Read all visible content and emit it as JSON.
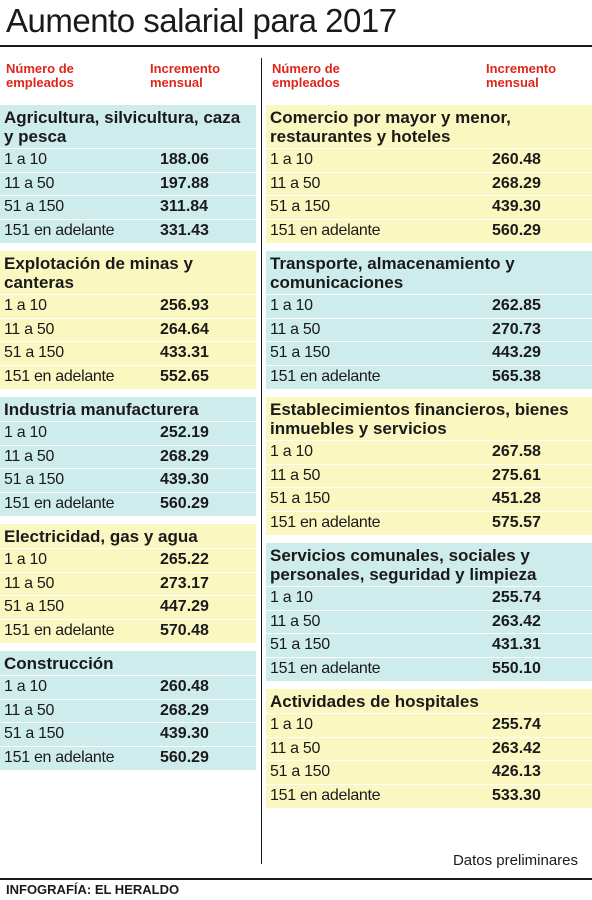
{
  "title": "Aumento salarial para 2017",
  "headers": {
    "employees": "Número de empleados",
    "increment": "Incremento mensual"
  },
  "left_sections": [
    {
      "title": "Agricultura, silvicultura, caza y pesca",
      "color": "#cfecec",
      "rows": [
        {
          "label": "1 a 10",
          "value": "188.06"
        },
        {
          "label": "11 a 50",
          "value": "197.88"
        },
        {
          "label": "51 a 150",
          "value": "311.84"
        },
        {
          "label": "151 en adelante",
          "value": "331.43"
        }
      ]
    },
    {
      "title": "Explotación de minas y canteras",
      "color": "#fbf7c0",
      "rows": [
        {
          "label": "1 a 10",
          "value": "256.93"
        },
        {
          "label": "11 a 50",
          "value": "264.64"
        },
        {
          "label": "51 a 150",
          "value": "433.31"
        },
        {
          "label": "151 en adelante",
          "value": "552.65"
        }
      ]
    },
    {
      "title": "Industria manufacturera",
      "color": "#cfecec",
      "rows": [
        {
          "label": "1 a 10",
          "value": "252.19"
        },
        {
          "label": "11 a 50",
          "value": "268.29"
        },
        {
          "label": "51 a 150",
          "value": "439.30"
        },
        {
          "label": "151 en adelante",
          "value": "560.29"
        }
      ]
    },
    {
      "title": "Electricidad, gas y agua",
      "color": "#fbf7c0",
      "rows": [
        {
          "label": "1 a 10",
          "value": "265.22"
        },
        {
          "label": "11 a 50",
          "value": "273.17"
        },
        {
          "label": "51 a 150",
          "value": "447.29"
        },
        {
          "label": "151 en adelante",
          "value": "570.48"
        }
      ]
    },
    {
      "title": "Construcción",
      "color": "#cfecec",
      "rows": [
        {
          "label": "1 a 10",
          "value": "260.48"
        },
        {
          "label": "11 a 50",
          "value": "268.29"
        },
        {
          "label": "51 a 150",
          "value": "439.30"
        },
        {
          "label": "151 en adelante",
          "value": "560.29"
        }
      ]
    }
  ],
  "right_sections": [
    {
      "title": "Comercio por mayor y menor, restaurantes y hoteles",
      "color": "#fbf7c0",
      "rows": [
        {
          "label": "1 a 10",
          "value": "260.48"
        },
        {
          "label": "11 a 50",
          "value": "268.29"
        },
        {
          "label": "51 a 150",
          "value": "439.30"
        },
        {
          "label": "151 en adelante",
          "value": "560.29"
        }
      ]
    },
    {
      "title": "Transporte, almacenamiento y comunicaciones",
      "color": "#cfecec",
      "rows": [
        {
          "label": "1 a 10",
          "value": "262.85"
        },
        {
          "label": "11 a 50",
          "value": "270.73"
        },
        {
          "label": "51 a 150",
          "value": "443.29"
        },
        {
          "label": "151 en adelante",
          "value": "565.38"
        }
      ]
    },
    {
      "title": "Establecimientos financieros, bienes inmuebles y servicios",
      "color": "#fbf7c0",
      "rows": [
        {
          "label": "1 a 10",
          "value": "267.58"
        },
        {
          "label": "11 a 50",
          "value": "275.61"
        },
        {
          "label": "51 a 150",
          "value": "451.28"
        },
        {
          "label": "151 en adelante",
          "value": "575.57"
        }
      ]
    },
    {
      "title": "Servicios comunales, sociales y personales, seguridad y limpieza",
      "color": "#cfecec",
      "rows": [
        {
          "label": "1 a 10",
          "value": "255.74"
        },
        {
          "label": "11 a 50",
          "value": "263.42"
        },
        {
          "label": "51 a 150",
          "value": "431.31"
        },
        {
          "label": "151 en adelante",
          "value": "550.10"
        }
      ]
    },
    {
      "title": "Actividades de hospitales",
      "color": "#fbf7c0",
      "rows": [
        {
          "label": "1 a 10",
          "value": "255.74"
        },
        {
          "label": "11 a 50",
          "value": "263.42"
        },
        {
          "label": "51 a 150",
          "value": "426.13"
        },
        {
          "label": "151 en adelante",
          "value": "533.30"
        }
      ]
    }
  ],
  "note": "Datos preliminares",
  "credit": "INFOGRAFÍA: EL HERALDO"
}
